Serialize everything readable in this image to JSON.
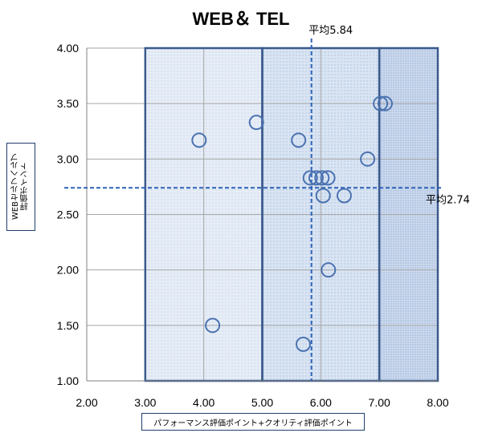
{
  "chart_data": {
    "type": "scatter",
    "title": "WEB＆ TEL",
    "xlabel": "パフォーマンス評価ポイント+クオリティ評価ポイント",
    "ylabel": "WEBセルフヘルプ\n評価ポイント",
    "xlim": [
      2.0,
      8.0
    ],
    "ylim": [
      1.0,
      4.0
    ],
    "x_ticks": [
      "2.00",
      "3.00",
      "4.00",
      "5.00",
      "6.00",
      "7.00",
      "8.00"
    ],
    "y_ticks": [
      "1.00",
      "1.50",
      "2.00",
      "2.50",
      "3.00",
      "3.50",
      "4.00"
    ],
    "grid": true,
    "points": [
      {
        "x": 3.92,
        "y": 3.17
      },
      {
        "x": 4.15,
        "y": 1.5
      },
      {
        "x": 4.9,
        "y": 3.33
      },
      {
        "x": 5.62,
        "y": 3.17
      },
      {
        "x": 5.7,
        "y": 1.33
      },
      {
        "x": 5.82,
        "y": 2.83
      },
      {
        "x": 5.92,
        "y": 2.83
      },
      {
        "x": 6.02,
        "y": 2.83
      },
      {
        "x": 6.12,
        "y": 2.83
      },
      {
        "x": 6.04,
        "y": 2.67
      },
      {
        "x": 6.4,
        "y": 2.67
      },
      {
        "x": 6.13,
        "y": 2.0
      },
      {
        "x": 6.8,
        "y": 3.0
      },
      {
        "x": 7.02,
        "y": 3.5
      },
      {
        "x": 7.1,
        "y": 3.5
      }
    ],
    "avg_x": {
      "value": 5.84,
      "label": "平均5.84"
    },
    "avg_y": {
      "value": 2.74,
      "label": "平均2.74"
    },
    "regions": [
      {
        "x0": 3.0,
        "x1": 5.0,
        "shade": "light"
      },
      {
        "x0": 5.0,
        "x1": 7.0,
        "shade": "medium"
      },
      {
        "x0": 7.0,
        "x1": 8.0,
        "shade": "dark"
      }
    ],
    "colors": {
      "marker": "#4a72b0",
      "region_border": "#3b5a8c",
      "avg_line": "#2e62b8",
      "grid": "#a6a6a6",
      "region_light": "#e3ebf6",
      "region_medium": "#d6e2f2",
      "region_dark": "#c9d8ee"
    }
  }
}
